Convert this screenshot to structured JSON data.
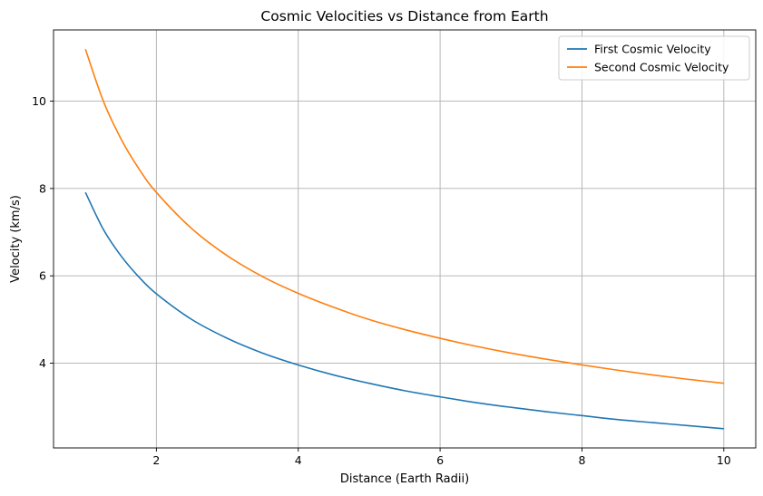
{
  "chart_data": {
    "type": "line",
    "title": "Cosmic Velocities vs Distance from Earth",
    "xlabel": "Distance (Earth Radii)",
    "ylabel": "Velocity (km/s)",
    "xlim": [
      0.55,
      10.45
    ],
    "ylim": [
      2.06,
      11.63
    ],
    "xticks": [
      2,
      4,
      6,
      8,
      10
    ],
    "yticks": [
      4,
      6,
      8,
      10
    ],
    "grid": true,
    "legend_position": "top-right",
    "x": [
      1,
      1.25,
      1.5,
      1.75,
      2,
      2.5,
      3,
      3.5,
      4,
      4.5,
      5,
      5.5,
      6,
      6.5,
      7,
      7.5,
      8,
      8.5,
      9,
      9.5,
      10
    ],
    "series": [
      {
        "name": "First Cosmic Velocity",
        "color": "#1f77b4",
        "values": [
          7.91,
          7.07,
          6.46,
          5.98,
          5.59,
          5.0,
          4.57,
          4.23,
          3.96,
          3.73,
          3.54,
          3.37,
          3.23,
          3.1,
          2.99,
          2.89,
          2.8,
          2.71,
          2.64,
          2.57,
          2.5
        ]
      },
      {
        "name": "Second Cosmic Velocity",
        "color": "#ff7f0e",
        "values": [
          11.19,
          10.01,
          9.14,
          8.46,
          7.91,
          7.08,
          6.46,
          5.98,
          5.6,
          5.28,
          5.0,
          4.77,
          4.57,
          4.39,
          4.23,
          4.09,
          3.96,
          3.84,
          3.73,
          3.63,
          3.54
        ]
      }
    ]
  }
}
